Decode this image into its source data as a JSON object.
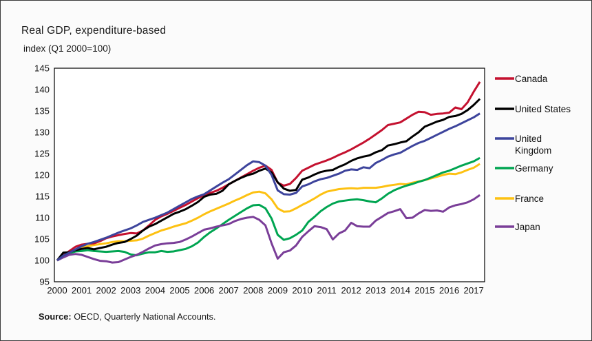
{
  "title": "Real GDP, expenditure-based",
  "subtitle": "index (Q1 2000=100)",
  "source": {
    "label": "Source:",
    "text": " OECD, Quarterly National Accounts."
  },
  "chart_data": {
    "type": "line",
    "title": "Real GDP, expenditure-based",
    "ylabel": "index (Q1 2000=100)",
    "xlabel": "",
    "grid": false,
    "legend_position": "right",
    "ylim": [
      95,
      145
    ],
    "y_tick_step": 5,
    "x_start": 2000,
    "x_step_years": 0.25,
    "x_tick_labels": [
      "2000",
      "2001",
      "2002",
      "2003",
      "2004",
      "2005",
      "2006",
      "2007",
      "2008",
      "2009",
      "2010",
      "2011",
      "2012",
      "2013",
      "2014",
      "2015",
      "2016",
      "2017"
    ],
    "frequency": "quarterly, 2000Q1 to 2017Q2",
    "series": [
      {
        "name": "Canada",
        "color": "#c4112f",
        "values": [
          100,
          101.2,
          102.2,
          103.2,
          103.7,
          103.9,
          104,
          104.5,
          105.2,
          105.6,
          105.9,
          106.2,
          106.4,
          106.3,
          107,
          108.2,
          109.5,
          110.3,
          110.9,
          111.6,
          112.3,
          113,
          113.8,
          114.6,
          115.3,
          115.8,
          116.3,
          117,
          117.8,
          118.6,
          119.4,
          120.2,
          121,
          121.7,
          122.2,
          121.2,
          118.2,
          117.5,
          117.9,
          119.3,
          121,
          121.7,
          122.4,
          122.9,
          123.4,
          124,
          124.7,
          125.3,
          126,
          126.8,
          127.6,
          128.5,
          129.5,
          130.5,
          131.7,
          132,
          132.3,
          133.2,
          134.1,
          134.8,
          134.7,
          134.1,
          134.3,
          134.4,
          134.6,
          135.8,
          135.4,
          137,
          139.5,
          141.8
        ]
      },
      {
        "name": "United States",
        "color": "#000000",
        "values": [
          100,
          101.8,
          101.9,
          102.4,
          102.7,
          102.9,
          102.6,
          102.9,
          103.2,
          103.7,
          104.1,
          104.3,
          105,
          105.8,
          107,
          107.9,
          108.5,
          109.3,
          110.1,
          110.9,
          111.4,
          112,
          112.8,
          113.7,
          114.9,
          115.4,
          115.6,
          116.3,
          117.8,
          118.6,
          119.3,
          119.9,
          120.3,
          121,
          121.5,
          120.6,
          118.3,
          116.8,
          116.3,
          116.5,
          118.9,
          119.4,
          120.1,
          120.7,
          121,
          121.2,
          121.9,
          122.5,
          123.3,
          123.9,
          124.3,
          124.6,
          125.3,
          125.8,
          126.9,
          127.2,
          127.6,
          127.9,
          129,
          130,
          131.3,
          131.9,
          132.5,
          132.9,
          133.6,
          133.8,
          134.3,
          135.2,
          136.4,
          137.8
        ]
      },
      {
        "name": "United Kingdom",
        "color": "#3d449c",
        "values": [
          100,
          101.1,
          101.8,
          102.6,
          103.3,
          103.9,
          104.3,
          104.8,
          105.3,
          105.9,
          106.5,
          107,
          107.5,
          108.2,
          109,
          109.5,
          110,
          110.6,
          111.2,
          112,
          112.8,
          113.6,
          114.4,
          115,
          115.5,
          116.4,
          117.3,
          118.2,
          119,
          120.1,
          121.2,
          122.3,
          123.2,
          123,
          122.2,
          120,
          116.4,
          115.5,
          115.4,
          115.8,
          117.3,
          117.8,
          118.5,
          119,
          119.3,
          119.8,
          120.3,
          121,
          121.3,
          121.2,
          121.8,
          121.6,
          122.8,
          123.5,
          124.3,
          124.8,
          125.2,
          126,
          126.8,
          127.5,
          128,
          128.7,
          129.4,
          130.1,
          130.8,
          131.4,
          132.1,
          132.8,
          133.5,
          134.4
        ]
      },
      {
        "name": "Germany",
        "color": "#00a551",
        "values": [
          100,
          101,
          101.7,
          102.1,
          102.2,
          102.4,
          102.2,
          102.1,
          102,
          102.1,
          102.2,
          102,
          101.4,
          101.2,
          101.6,
          101.9,
          101.9,
          102.2,
          102,
          102.1,
          102.4,
          102.7,
          103.3,
          104.2,
          105.5,
          106.6,
          107.5,
          108.5,
          109.5,
          110.4,
          111.3,
          112.2,
          112.9,
          113,
          112.2,
          109.8,
          106,
          104.8,
          105.2,
          106,
          107,
          109,
          110.2,
          111.5,
          112.5,
          113.3,
          113.8,
          114,
          114.2,
          114.3,
          114.1,
          113.8,
          113.6,
          114.5,
          115.6,
          116.4,
          117,
          117.5,
          117.9,
          118.4,
          118.8,
          119.4,
          120,
          120.6,
          121,
          121.6,
          122.2,
          122.7,
          123.2,
          124
        ]
      },
      {
        "name": "France",
        "color": "#fdc112",
        "values": [
          100,
          100.8,
          101.6,
          102.4,
          103,
          103.3,
          103.6,
          103.8,
          104,
          104.3,
          104.5,
          104.5,
          104.6,
          104.7,
          105.1,
          105.8,
          106.4,
          107,
          107.4,
          107.9,
          108.3,
          108.7,
          109.3,
          110,
          110.8,
          111.5,
          112.1,
          112.7,
          113.3,
          114,
          114.6,
          115.3,
          115.9,
          116.1,
          115.7,
          114.3,
          112.2,
          111.4,
          111.5,
          112.2,
          113,
          113.7,
          114.5,
          115.4,
          116.1,
          116.4,
          116.7,
          116.8,
          116.9,
          116.8,
          117,
          117,
          117,
          117.2,
          117.5,
          117.7,
          117.9,
          117.8,
          118.2,
          118.5,
          118.8,
          119.2,
          119.6,
          120,
          120.3,
          120.2,
          120.6,
          121.2,
          121.7,
          122.6
        ]
      },
      {
        "name": "Japan",
        "color": "#7a3e98",
        "values": [
          100,
          100.7,
          101.3,
          101.5,
          101.3,
          100.8,
          100.3,
          99.9,
          99.8,
          99.5,
          99.6,
          100.2,
          100.8,
          101.3,
          102,
          102.8,
          103.5,
          103.8,
          104,
          104.1,
          104.3,
          104.9,
          105.6,
          106.4,
          107.2,
          107.5,
          107.9,
          108.2,
          108.5,
          109.2,
          109.7,
          110,
          110.2,
          109.5,
          108.2,
          104,
          100.4,
          101.9,
          102.3,
          103.5,
          105.5,
          106.8,
          108,
          107.8,
          107.3,
          104.9,
          106.3,
          107,
          108.8,
          108,
          107.9,
          107.9,
          109.3,
          110.2,
          111.1,
          111.5,
          112,
          109.9,
          110,
          111,
          111.8,
          111.6,
          111.7,
          111.4,
          112.4,
          112.9,
          113.2,
          113.6,
          114.3,
          115.3
        ]
      }
    ]
  }
}
